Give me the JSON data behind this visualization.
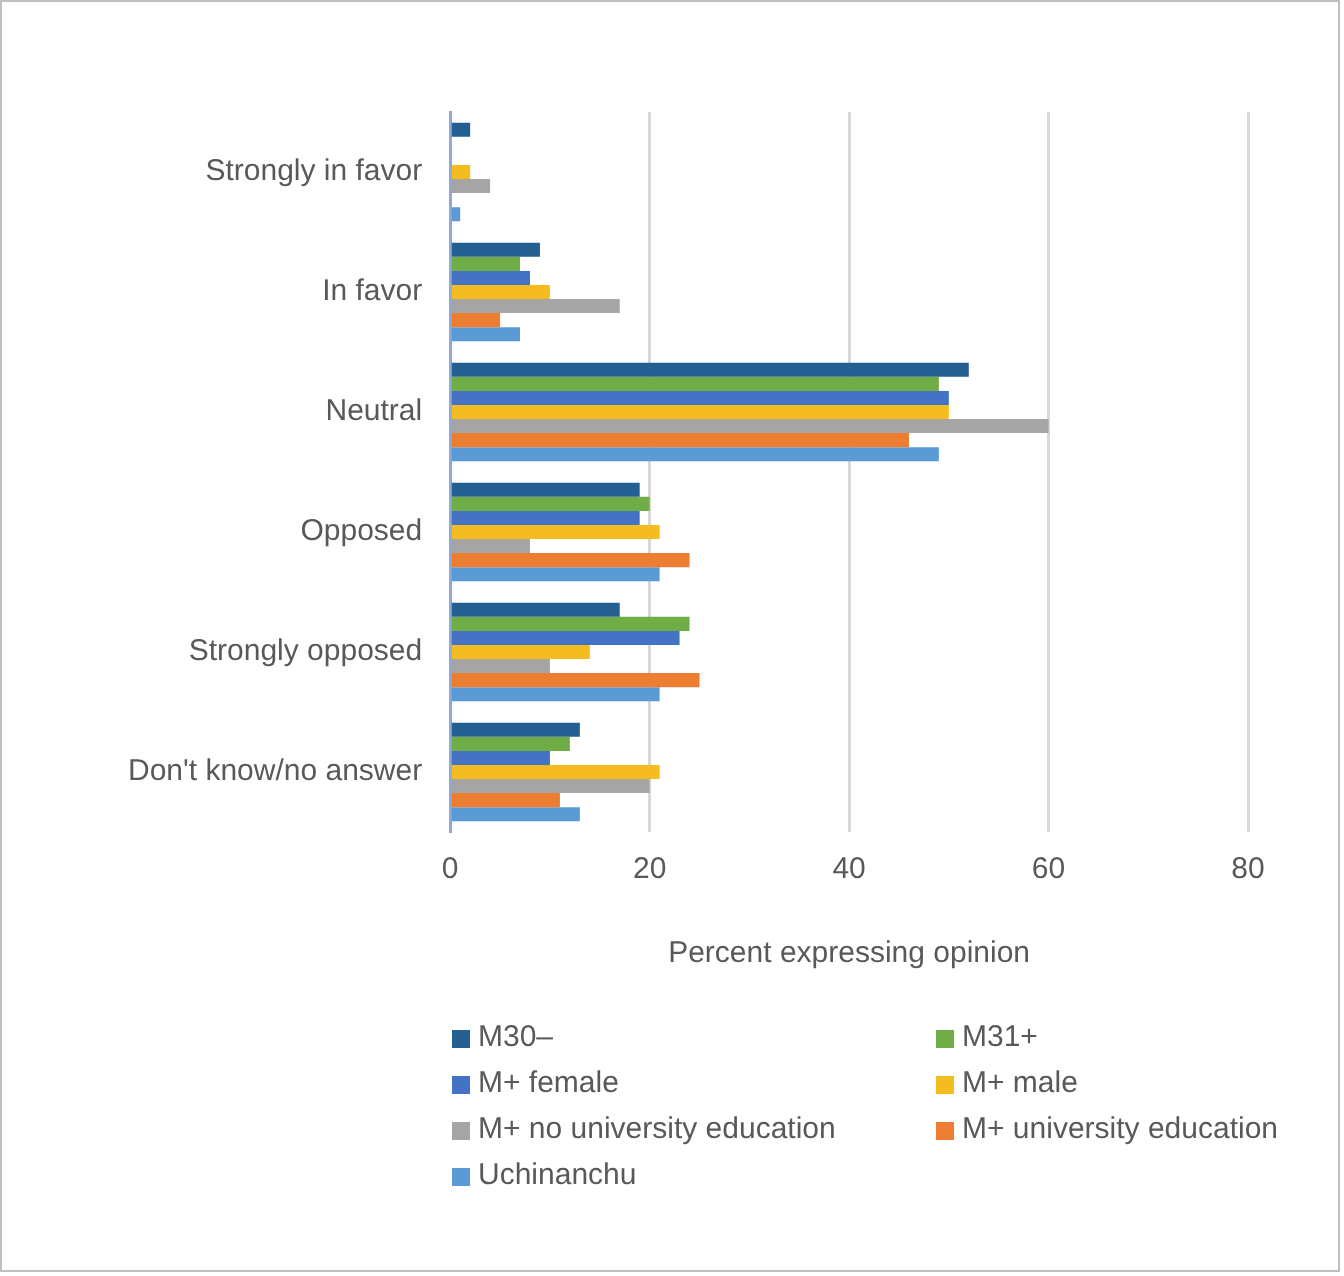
{
  "chart_data": {
    "type": "bar",
    "orientation": "horizontal",
    "xlabel": "Percent expressing opinion",
    "categories": [
      "Strongly in favor",
      "In favor",
      "Neutral",
      "Opposed",
      "Strongly opposed",
      "Don't know/no answer"
    ],
    "series": [
      {
        "name": "M30–",
        "color": "#255e91",
        "values": [
          2,
          9,
          52,
          19,
          17,
          13
        ]
      },
      {
        "name": "M31+",
        "color": "#70ad47",
        "values": [
          0,
          7,
          49,
          20,
          24,
          12
        ]
      },
      {
        "name": "M+ female",
        "color": "#4472c4",
        "values": [
          0,
          8,
          50,
          19,
          23,
          10
        ]
      },
      {
        "name": "M+ male",
        "color": "#f4bc1e",
        "values": [
          2,
          10,
          50,
          21,
          14,
          21
        ]
      },
      {
        "name": "M+ no university education",
        "color": "#a5a5a5",
        "values": [
          4,
          17,
          60,
          8,
          10,
          20
        ]
      },
      {
        "name": "M+ university education",
        "color": "#ed7d31",
        "values": [
          0,
          5,
          46,
          24,
          25,
          11
        ]
      },
      {
        "name": "Uchinanchu",
        "color": "#5b9bd5",
        "values": [
          1,
          7,
          49,
          21,
          21,
          13
        ]
      }
    ],
    "xlim": [
      0,
      80
    ],
    "xticks": [
      0,
      20,
      40,
      60,
      80
    ],
    "grid": "x",
    "legend": "bottom"
  }
}
